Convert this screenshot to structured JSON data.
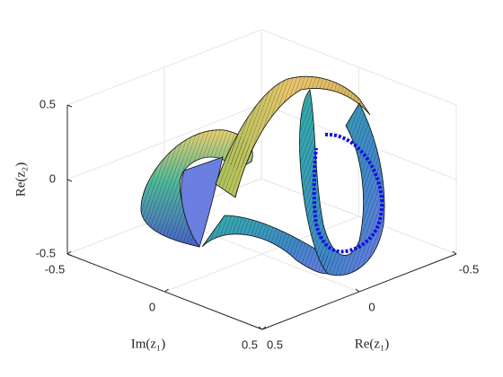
{
  "chart_data": {
    "type": "surface3d",
    "xlabel": "Re(z₁)",
    "ylabel": "Im(z₁)",
    "zlabel": "Re(z₂)",
    "xlim": [
      -0.5,
      0.5
    ],
    "xticks": [
      -0.5,
      0,
      0.5
    ],
    "ylim": [
      -0.5,
      0.5
    ],
    "yticks": [
      -0.5,
      0,
      0.5
    ],
    "zlim": [
      -0.5,
      0.5
    ],
    "zticks": [
      -0.5,
      0,
      0.5
    ],
    "grid": true
  }
}
